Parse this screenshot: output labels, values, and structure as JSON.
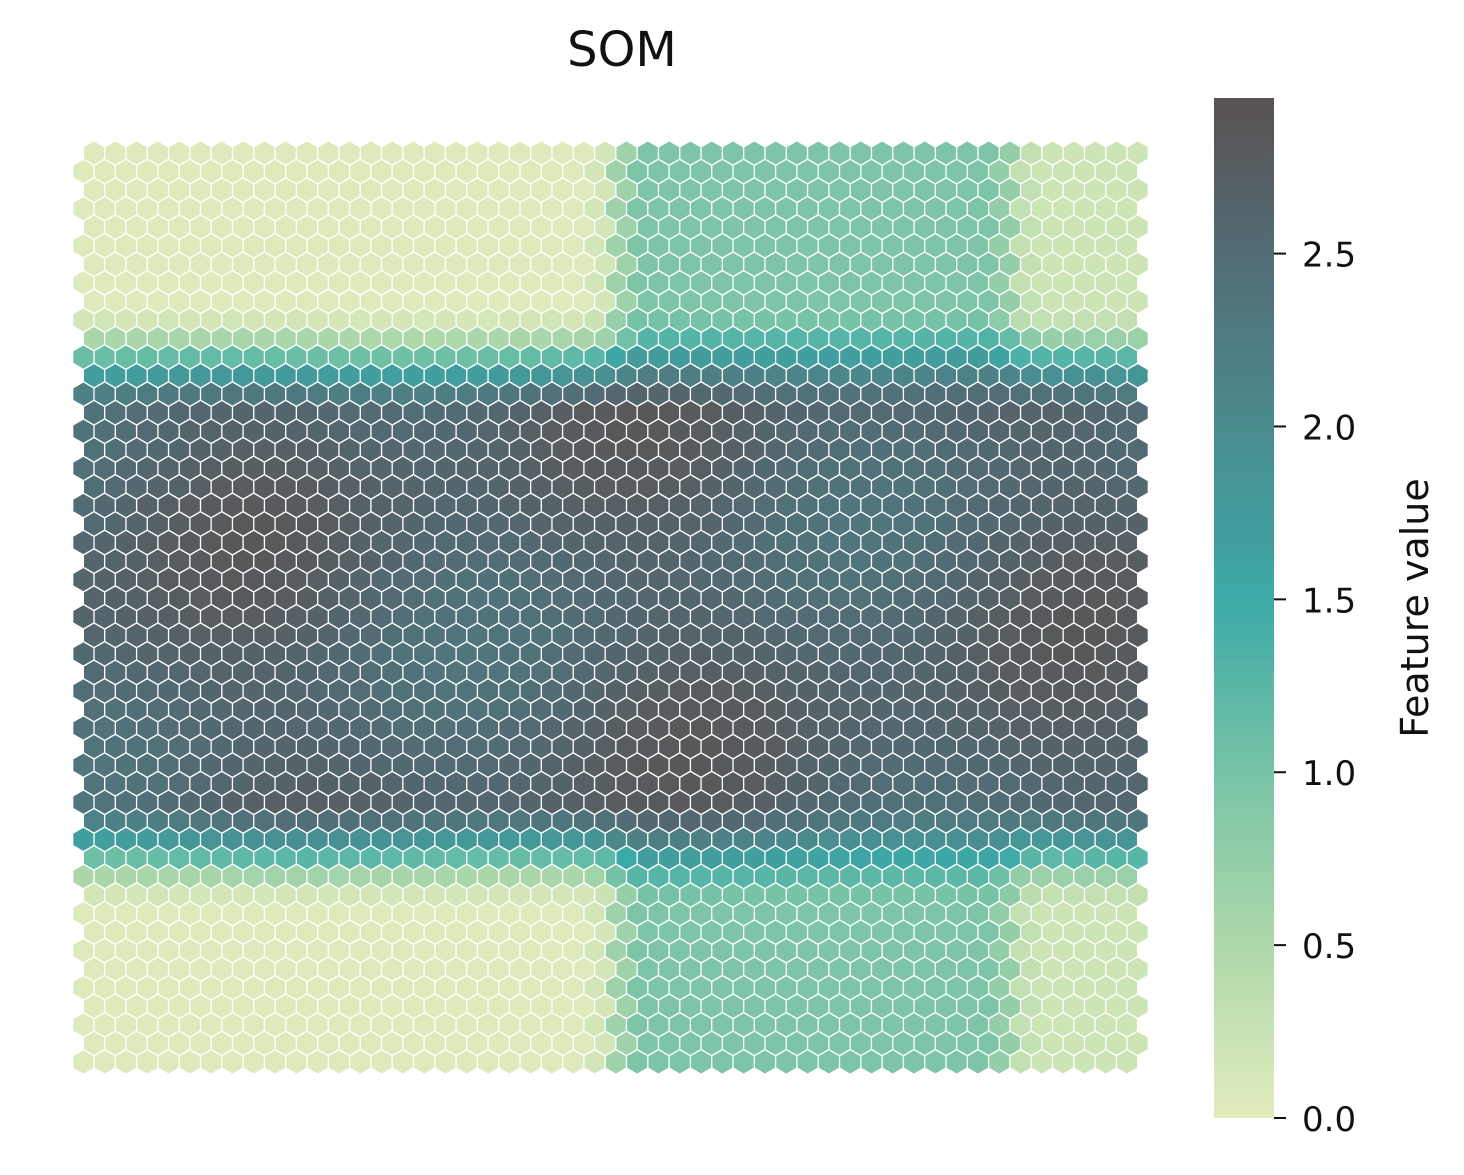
{
  "chart_data": {
    "type": "heatmap",
    "title": "SOM",
    "grid": {
      "cols": 50,
      "rows": 50,
      "cell_shape": "hexagon"
    },
    "colorbar": {
      "label": "Feature value",
      "min": 0.0,
      "max": 2.95,
      "ticks": [
        0.0,
        0.5,
        1.0,
        1.5,
        2.0,
        2.5
      ],
      "tick_labels": [
        "0.0",
        "0.5",
        "1.0",
        "1.5",
        "2.0",
        "2.5"
      ],
      "colors": [
        {
          "value": 0.0,
          "color": "#e2ecbd"
        },
        {
          "value": 0.5,
          "color": "#aed8aa"
        },
        {
          "value": 1.0,
          "color": "#77c3a6"
        },
        {
          "value": 1.5,
          "color": "#3caaa7"
        },
        {
          "value": 2.0,
          "color": "#4a8b8e"
        },
        {
          "value": 2.5,
          "color": "#526c75"
        },
        {
          "value": 2.95,
          "color": "#5a5252"
        }
      ]
    },
    "regions": [
      {
        "name": "top-left",
        "value": 0.05
      },
      {
        "name": "top-center-right",
        "value": 0.95
      },
      {
        "name": "top-right",
        "value": 0.2
      },
      {
        "name": "middle",
        "value": 2.6
      },
      {
        "name": "bottom-left",
        "value": 0.05
      },
      {
        "name": "bottom-center-right",
        "value": 0.95
      },
      {
        "name": "bottom-right",
        "value": 0.2
      }
    ]
  }
}
